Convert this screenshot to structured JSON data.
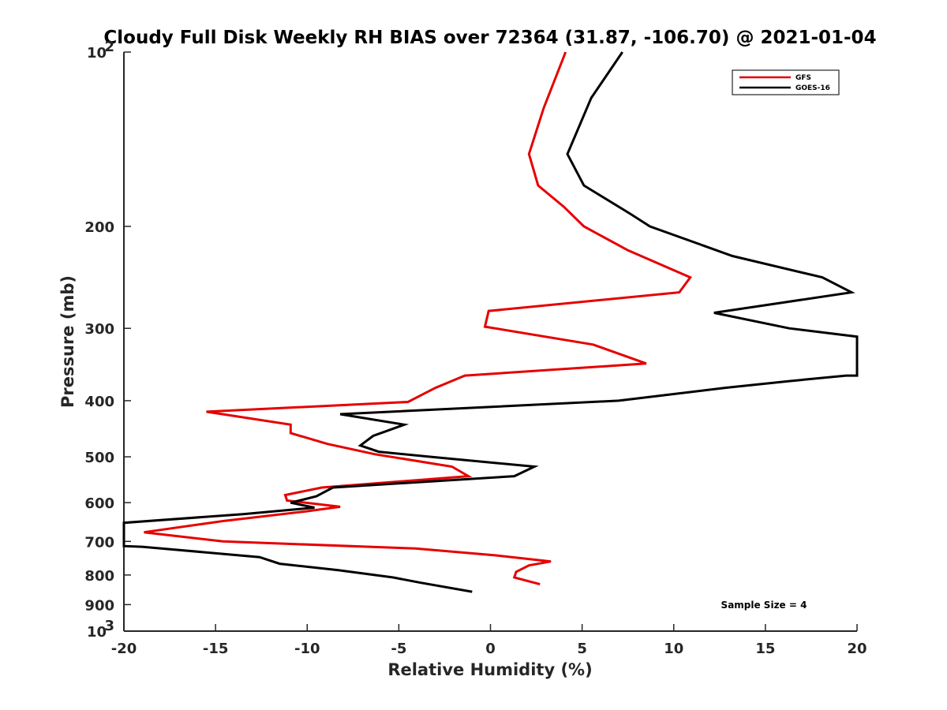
{
  "chart_data": {
    "type": "line",
    "title": "Cloudy Full Disk Weekly RH BIAS over 72364 (31.87, -106.70) @ 2021-01-04",
    "xlabel": "Relative Humidity (%)",
    "ylabel": "Pressure (mb)",
    "xlim": [
      -20,
      20
    ],
    "ylim": [
      100,
      1000
    ],
    "yscale": "log",
    "y_reversed": true,
    "x_ticks": [
      "-20",
      "-15",
      "-10",
      "-5",
      "0",
      "5",
      "10",
      "15",
      "20"
    ],
    "y_ticks": [
      {
        "value": 100,
        "label": "10",
        "exp": "2"
      },
      {
        "value": 200,
        "label": "200"
      },
      {
        "value": 300,
        "label": "300"
      },
      {
        "value": 400,
        "label": "400"
      },
      {
        "value": 500,
        "label": "500"
      },
      {
        "value": 600,
        "label": "600"
      },
      {
        "value": 700,
        "label": "700"
      },
      {
        "value": 800,
        "label": "800"
      },
      {
        "value": 900,
        "label": "900"
      },
      {
        "value": 1000,
        "label": "10",
        "exp": "3"
      }
    ],
    "grid": false,
    "legend_position": "top-right",
    "annotation": "Sample Size = 4",
    "series": [
      {
        "name": "GFS",
        "color": "#e60000",
        "points": [
          [
            4.1,
            100
          ],
          [
            2.9,
            125
          ],
          [
            2.1,
            150
          ],
          [
            2.6,
            170
          ],
          [
            4.0,
            185
          ],
          [
            5.1,
            200
          ],
          [
            7.5,
            220
          ],
          [
            10.9,
            245
          ],
          [
            10.3,
            260
          ],
          [
            -0.1,
            280
          ],
          [
            -0.3,
            298
          ],
          [
            5.6,
            320
          ],
          [
            8.5,
            345
          ],
          [
            -1.4,
            362
          ],
          [
            -3.0,
            380
          ],
          [
            -4.5,
            402
          ],
          [
            -15.5,
            418
          ],
          [
            -10.9,
            440
          ],
          [
            -10.9,
            455
          ],
          [
            -8.9,
            475
          ],
          [
            -6.3,
            495
          ],
          [
            -2.1,
            520
          ],
          [
            -1.2,
            540
          ],
          [
            -9.2,
            565
          ],
          [
            -11.2,
            582
          ],
          [
            -11.1,
            595
          ],
          [
            -8.2,
            610
          ],
          [
            -10.2,
            622
          ],
          [
            -14.5,
            645
          ],
          [
            -18.9,
            675
          ],
          [
            -14.6,
            700
          ],
          [
            -4.1,
            720
          ],
          [
            0.3,
            740
          ],
          [
            3.3,
            758
          ],
          [
            2.1,
            770
          ],
          [
            1.4,
            790
          ],
          [
            1.3,
            808
          ],
          [
            2.7,
            830
          ]
        ]
      },
      {
        "name": "GOES-16",
        "color": "#000000",
        "points": [
          [
            7.2,
            100
          ],
          [
            5.5,
            120
          ],
          [
            4.2,
            150
          ],
          [
            5.1,
            170
          ],
          [
            7.6,
            190
          ],
          [
            8.7,
            200
          ],
          [
            13.2,
            225
          ],
          [
            18.1,
            245
          ],
          [
            19.7,
            260
          ],
          [
            12.2,
            282
          ],
          [
            16.3,
            300
          ],
          [
            20.0,
            310
          ],
          [
            20.0,
            362
          ],
          [
            19.4,
            362
          ],
          [
            16.3,
            370
          ],
          [
            12.8,
            380
          ],
          [
            7.0,
            400
          ],
          [
            -8.2,
            422
          ],
          [
            -4.7,
            440
          ],
          [
            -6.4,
            460
          ],
          [
            -7.1,
            478
          ],
          [
            -6.1,
            490
          ],
          [
            -3.3,
            500
          ],
          [
            2.4,
            520
          ],
          [
            1.3,
            540
          ],
          [
            -8.6,
            565
          ],
          [
            -9.5,
            585
          ],
          [
            -10.9,
            600
          ],
          [
            -9.6,
            612
          ],
          [
            -13.5,
            628
          ],
          [
            -20.0,
            650
          ],
          [
            -20.0,
            713
          ],
          [
            -19.0,
            715
          ],
          [
            -12.6,
            745
          ],
          [
            -11.5,
            765
          ],
          [
            -8.3,
            785
          ],
          [
            -5.3,
            808
          ],
          [
            -3.8,
            825
          ],
          [
            -1.0,
            855
          ]
        ]
      }
    ]
  }
}
